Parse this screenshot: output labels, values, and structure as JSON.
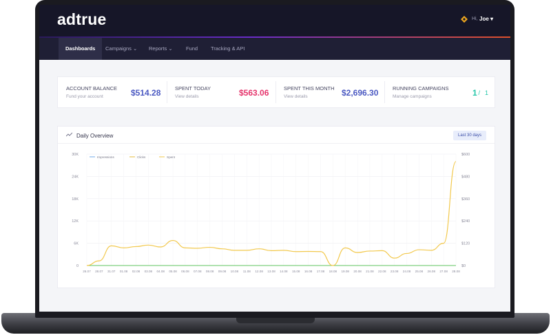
{
  "brand": "adtrue",
  "user": {
    "greeting": "Hi,",
    "name": "Joe ▾"
  },
  "nav": [
    {
      "label": "Dashboards",
      "active": true
    },
    {
      "label": "Campaigns ⌄"
    },
    {
      "label": "Reports ⌄"
    },
    {
      "label": "Fund"
    },
    {
      "label": "Tracking & API"
    }
  ],
  "stats": [
    {
      "title": "ACCOUNT BALANCE",
      "sub": "Fund your account",
      "value": "$514.28",
      "color": "#4b59c2"
    },
    {
      "title": "SPENT TODAY",
      "sub": "View details",
      "value": "$563.06",
      "color": "#e5336b"
    },
    {
      "title": "SPENT THIS MONTH",
      "sub": "View details",
      "value": "$2,696.30",
      "color": "#4b59c2"
    },
    {
      "title": "RUNNING CAMPAIGNS",
      "sub": "Manage campaigns",
      "value_main": "1",
      "value_sep": " / ",
      "value_total": "1",
      "color": "#24c7a9"
    }
  ],
  "overview": {
    "title": "Daily Overview",
    "range_label": "Last 30 days"
  },
  "chart_data": {
    "type": "line",
    "categories": [
      "26.07",
      "28.07",
      "31.07",
      "01.08",
      "02.08",
      "03.08",
      "04.08",
      "05.08",
      "06.08",
      "07.08",
      "08.08",
      "09.08",
      "10.08",
      "11.08",
      "12.08",
      "13.08",
      "14.08",
      "15.08",
      "16.08",
      "17.08",
      "18.08",
      "19.08",
      "20.08",
      "21.08",
      "22.08",
      "23.08",
      "24.08",
      "25.08",
      "26.08",
      "27.08",
      "28.08"
    ],
    "series": [
      {
        "name": "Impressions",
        "color": "#6fa8e8",
        "values": [
          0,
          0,
          0,
          0,
          0,
          0,
          0,
          0,
          0,
          0,
          0,
          0,
          0,
          0,
          0,
          0,
          0,
          0,
          0,
          0,
          0,
          0,
          0,
          0,
          0,
          0,
          0,
          0,
          0,
          0,
          0
        ],
        "axis": "left"
      },
      {
        "name": "Clicks",
        "color": "#e3b93a",
        "values": [
          0,
          0,
          0,
          0,
          0,
          0,
          0,
          0,
          0,
          0,
          0,
          0,
          0,
          0,
          0,
          0,
          0,
          0,
          0,
          0,
          0,
          0,
          0,
          0,
          0,
          0,
          0,
          0,
          0,
          0,
          0
        ],
        "axis": "left"
      },
      {
        "name": "Spent",
        "color": "#62c462",
        "values": [
          0,
          25,
          106,
          95,
          102,
          110,
          100,
          135,
          95,
          93,
          98,
          90,
          82,
          82,
          90,
          80,
          82,
          75,
          76,
          75,
          0,
          95,
          70,
          78,
          80,
          40,
          65,
          85,
          82,
          120,
          560
        ],
        "axis": "right"
      }
    ],
    "y_left": {
      "ticks": [
        "0",
        "6K",
        "12K",
        "18K",
        "24K",
        "30K"
      ],
      "max": 30000
    },
    "y_right": {
      "ticks": [
        "$0",
        "$120",
        "$240",
        "$360",
        "$480",
        "$600"
      ],
      "max": 600
    },
    "legend_position": "top-left",
    "grid": true
  }
}
